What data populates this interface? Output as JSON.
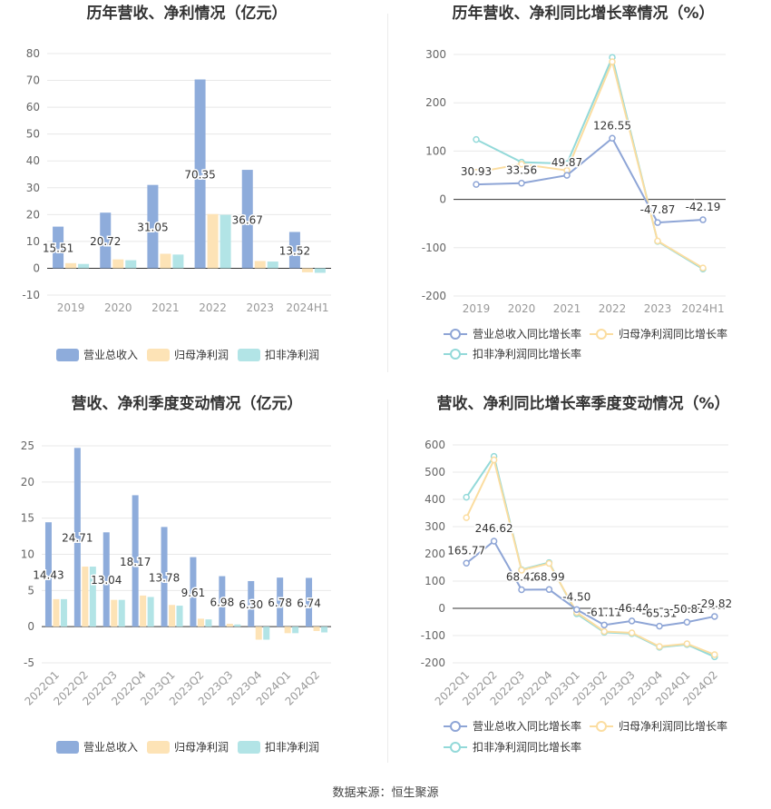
{
  "footer": {
    "source": "数据来源：恒生聚源"
  },
  "colors": {
    "revenue": "#8eacdb",
    "net_profit": "#fde3b6",
    "deducted": "#b2e4e6",
    "rev_line": "#8ea5d6",
    "np_line": "#fbdda0",
    "ded_line": "#93d9d9"
  },
  "chart_data": [
    {
      "type": "bar",
      "title": "历年营收、净利情况（亿元）",
      "categories": [
        "2019",
        "2020",
        "2021",
        "2022",
        "2023",
        "2024H1"
      ],
      "ylim": [
        -10,
        80
      ],
      "yticks": [
        -10,
        0,
        10,
        20,
        30,
        40,
        50,
        60,
        70,
        80
      ],
      "series": [
        {
          "name": "营业总收入",
          "values": [
            15.51,
            20.72,
            31.05,
            70.35,
            36.67,
            13.52
          ],
          "labels": [
            "15.51",
            "20.72",
            "31.05",
            "70.35",
            "36.67",
            "13.52"
          ]
        },
        {
          "name": "归母净利润",
          "values": [
            1.9,
            3.3,
            5.4,
            20.2,
            2.7,
            -1.5
          ]
        },
        {
          "name": "扣非净利润",
          "values": [
            1.6,
            3.0,
            5.1,
            19.9,
            2.5,
            -1.7
          ]
        }
      ],
      "legend_position": "bottom"
    },
    {
      "type": "line",
      "title": "历年营收、净利同比增长率情况（%）",
      "categories": [
        "2019",
        "2020",
        "2021",
        "2022",
        "2023",
        "2024H1"
      ],
      "ylim": [
        -200,
        300
      ],
      "yticks": [
        -200,
        -100,
        0,
        100,
        200,
        300
      ],
      "series": [
        {
          "name": "营业总收入同比增长率",
          "values": [
            30.93,
            33.56,
            49.87,
            126.55,
            -47.87,
            -42.19
          ],
          "labels": [
            "30.93",
            "33.56",
            "49.87",
            "126.55",
            "-47.87",
            "-42.19"
          ]
        },
        {
          "name": "归母净利润同比增长率",
          "values": [
            56,
            73,
            60,
            285,
            -86,
            -142
          ]
        },
        {
          "name": "扣非净利润同比增长率",
          "values": [
            124,
            77,
            74,
            294,
            -87,
            -144
          ]
        }
      ],
      "legend_position": "bottom"
    },
    {
      "type": "bar",
      "title": "营收、净利季度变动情况（亿元）",
      "categories": [
        "2022Q1",
        "2022Q2",
        "2022Q3",
        "2022Q4",
        "2023Q1",
        "2023Q2",
        "2023Q3",
        "2023Q4",
        "2024Q1",
        "2024Q2"
      ],
      "ylim": [
        -5,
        25
      ],
      "yticks": [
        -5,
        0,
        5,
        10,
        15,
        20,
        25
      ],
      "series": [
        {
          "name": "营业总收入",
          "values": [
            14.43,
            24.71,
            13.04,
            18.17,
            13.78,
            9.61,
            6.98,
            6.3,
            6.78,
            6.74
          ],
          "labels": [
            "14.43",
            "24.71",
            "13.04",
            "18.17",
            "13.78",
            "9.61",
            "6.98",
            "6.30",
            "6.78",
            "6.74"
          ]
        },
        {
          "name": "归母净利润",
          "values": [
            3.8,
            8.3,
            3.7,
            4.3,
            3.0,
            1.1,
            0.4,
            -1.8,
            -0.9,
            -0.6
          ]
        },
        {
          "name": "扣非净利润",
          "values": [
            3.8,
            8.3,
            3.7,
            4.1,
            2.9,
            1.0,
            0.3,
            -1.8,
            -0.9,
            -0.8
          ]
        }
      ],
      "legend_position": "bottom"
    },
    {
      "type": "line",
      "title": "营收、净利同比增长率季度变动情况（%）",
      "categories": [
        "2022Q1",
        "2022Q2",
        "2022Q3",
        "2022Q4",
        "2023Q1",
        "2023Q2",
        "2023Q3",
        "2023Q4",
        "2024Q1",
        "2024Q2"
      ],
      "ylim": [
        -200,
        600
      ],
      "yticks": [
        -200,
        -100,
        0,
        100,
        200,
        300,
        400,
        500,
        600
      ],
      "series": [
        {
          "name": "营业总收入同比增长率",
          "values": [
            165.77,
            246.62,
            68.42,
            68.99,
            -4.5,
            -61.11,
            -46.44,
            -65.31,
            -50.81,
            -29.82
          ],
          "labels": [
            "165.77",
            "246.62",
            "68.42",
            "68.99",
            "-4.50",
            "-61.11",
            "-46.44",
            "-65.31",
            "-50.81",
            "-29.82"
          ]
        },
        {
          "name": "归母净利润同比增长率",
          "values": [
            333,
            545,
            140,
            165,
            -15,
            -85,
            -90,
            -140,
            -130,
            -170
          ]
        },
        {
          "name": "扣非净利润同比增长率",
          "values": [
            408,
            558,
            142,
            168,
            -20,
            -88,
            -93,
            -143,
            -133,
            -178
          ]
        }
      ],
      "legend_position": "bottom"
    }
  ]
}
